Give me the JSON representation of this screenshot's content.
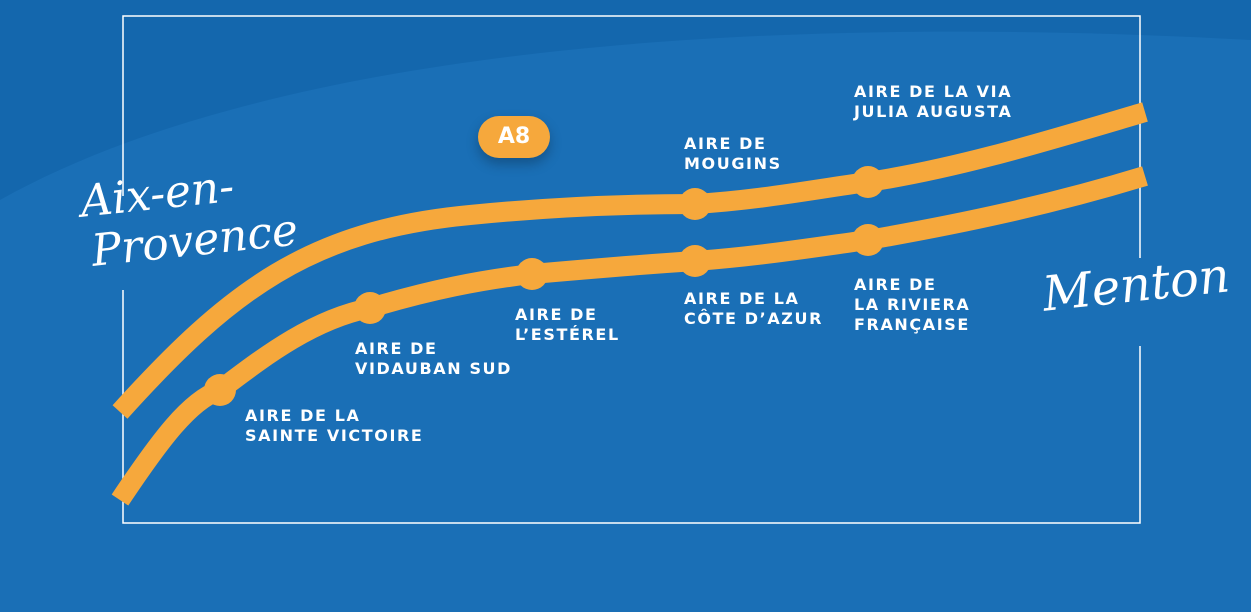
{
  "map": {
    "road_badge": "A8",
    "origin_city": [
      "Aix-en-",
      "Provence"
    ],
    "destination_city": "Menton",
    "rest_areas": [
      {
        "lines": [
          "AIRE DE LA",
          "SAINTE VICTOIRE"
        ]
      },
      {
        "lines": [
          "AIRE DE",
          "VIDAUBAN SUD"
        ]
      },
      {
        "lines": [
          "AIRE DE",
          "L’ESTÉREL"
        ]
      },
      {
        "lines": [
          "AIRE DE",
          "MOUGINS"
        ]
      },
      {
        "lines": [
          "AIRE DE LA",
          "CÔTE D’AZUR"
        ]
      },
      {
        "lines": [
          "AIRE DE LA VIA",
          "JULIA AUGUSTA"
        ]
      },
      {
        "lines": [
          "AIRE DE",
          "LA RIVIERA",
          "FRANÇAISE"
        ]
      }
    ],
    "colors": {
      "background": "#1467ad",
      "background_wave": "#1a6fb6",
      "road": "#f6a83c",
      "frame": "#ffffff",
      "text": "#ffffff"
    }
  }
}
